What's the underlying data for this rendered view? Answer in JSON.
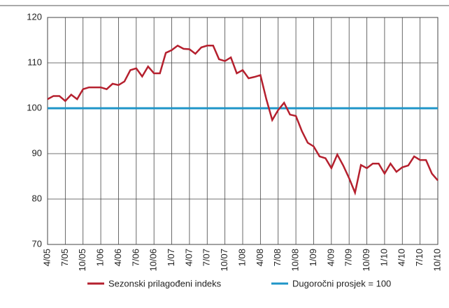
{
  "chart_data": {
    "type": "line",
    "categories": [
      "4/05",
      null,
      null,
      "7/05",
      null,
      null,
      "10/05",
      null,
      null,
      "1/06",
      null,
      null,
      "4/06",
      null,
      null,
      "7/06",
      null,
      null,
      "10/06",
      null,
      null,
      "1/07",
      null,
      null,
      "4/07",
      null,
      null,
      "7/07",
      null,
      null,
      "10/07",
      null,
      null,
      "1/08",
      null,
      null,
      "4/08",
      null,
      null,
      "7/08",
      null,
      null,
      "10/08",
      null,
      null,
      "1/09",
      null,
      null,
      "4/09",
      null,
      null,
      "7/09",
      null,
      null,
      "10/09",
      null,
      null,
      "1/10",
      null,
      null,
      "4/10",
      null,
      null,
      "7/10",
      null,
      null,
      "10/10"
    ],
    "series": [
      {
        "name": "Sezonski prilagođeni indeks",
        "color": "#b5202e",
        "values": [
          102,
          102.7,
          102.7,
          101.6,
          103,
          102,
          104.2,
          104.6,
          104.6,
          104.6,
          104.2,
          105.4,
          105.1,
          105.9,
          108.4,
          108.8,
          107,
          109.2,
          107.7,
          107.7,
          112.2,
          112.8,
          113.8,
          113.1,
          113,
          112,
          113.4,
          113.8,
          113.8,
          110.8,
          110.4,
          111.2,
          107.7,
          108.4,
          106.6,
          106.9,
          107.3,
          102,
          97.4,
          99.6,
          101.2,
          98.6,
          98.3,
          95,
          92.4,
          91.6,
          89.4,
          89,
          86.8,
          89.8,
          87.4,
          84.6,
          81.4,
          87.5,
          86.8,
          87.8,
          87.8,
          85.6,
          87.8,
          86,
          87,
          87.4,
          89.4,
          88.6,
          88.6,
          85.6,
          84.1
        ]
      },
      {
        "name": "Dugoročni prosjek = 100",
        "color": "#1f95c8",
        "values": [
          100,
          100,
          100,
          100,
          100,
          100,
          100,
          100,
          100,
          100,
          100,
          100,
          100,
          100,
          100,
          100,
          100,
          100,
          100,
          100,
          100,
          100,
          100,
          100,
          100,
          100,
          100,
          100,
          100,
          100,
          100,
          100,
          100,
          100,
          100,
          100,
          100,
          100,
          100,
          100,
          100,
          100,
          100,
          100,
          100,
          100,
          100,
          100,
          100,
          100,
          100,
          100,
          100,
          100,
          100,
          100,
          100,
          100,
          100,
          100,
          100,
          100,
          100,
          100,
          100,
          100,
          100
        ]
      }
    ],
    "ylim": [
      70,
      120
    ],
    "yticks": [
      70,
      80,
      90,
      100,
      110,
      120
    ],
    "grid": true,
    "legend": "bottom"
  }
}
